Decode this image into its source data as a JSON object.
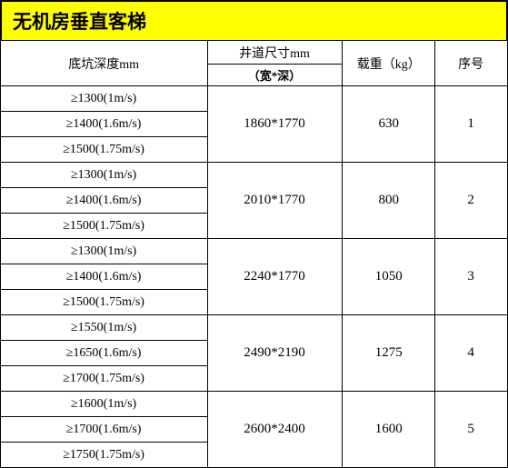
{
  "title": "无机房垂直客梯",
  "headers": {
    "serial": "序号",
    "weight": "载重（kg）",
    "size_main": "井道尺寸mm",
    "size_sub": "（宽*深）",
    "depth": "底坑深度mm"
  },
  "rows": [
    {
      "serial": "1",
      "weight": "630",
      "size": "1860*1770",
      "depths": [
        "≥1300(1m/s)",
        "≥1400(1.6m/s)",
        "≥1500(1.75m/s)"
      ]
    },
    {
      "serial": "2",
      "weight": "800",
      "size": "2010*1770",
      "depths": [
        "≥1300(1m/s)",
        "≥1400(1.6m/s)",
        "≥1500(1.75m/s)"
      ]
    },
    {
      "serial": "3",
      "weight": "1050",
      "size": "2240*1770",
      "depths": [
        "≥1300(1m/s)",
        "≥1400(1.6m/s)",
        "≥1500(1.75m/s)"
      ]
    },
    {
      "serial": "4",
      "weight": "1275",
      "size": "2490*2190",
      "depths": [
        "≥1550(1m/s)",
        "≥1650(1.6m/s)",
        "≥1700(1.75m/s)"
      ]
    },
    {
      "serial": "5",
      "weight": "1600",
      "size": "2600*2400",
      "depths": [
        "≥1600(1m/s)",
        "≥1700(1.6m/s)",
        "≥1750(1.75m/s)"
      ]
    }
  ],
  "colors": {
    "title_bg": "#ffff00",
    "border": "#000000",
    "text": "#000000",
    "bg": "#ffffff"
  }
}
